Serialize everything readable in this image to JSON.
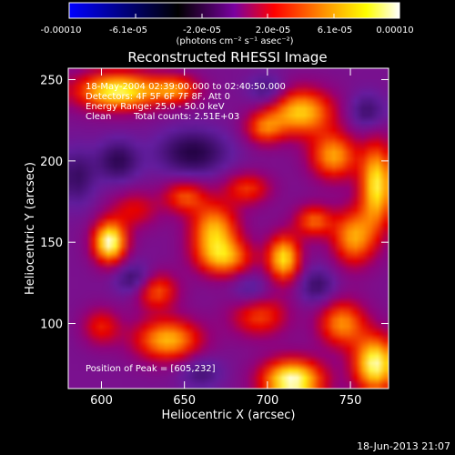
{
  "chart_data": {
    "type": "heatmap",
    "title": "Reconstructed RHESSI Image",
    "xlabel": "Heliocentric X (arcsec)",
    "ylabel": "Heliocentric Y (arcsec)",
    "xlim": [
      580,
      773
    ],
    "ylim": [
      60,
      257
    ],
    "x_ticks": [
      600,
      650,
      700,
      750
    ],
    "y_ticks": [
      100,
      150,
      200,
      250
    ],
    "colorbar": {
      "range": [
        -0.0001,
        0.0001
      ],
      "tick_labels": [
        "-0.00010",
        "-6.1e-05",
        "-2.0e-05",
        "2.0e-05",
        "6.1e-05",
        "0.00010"
      ],
      "label": "(photons cm⁻² s⁻¹ asec⁻²)",
      "palette": [
        "#0000ff",
        "#000000",
        "#7a00a0",
        "#ff0000",
        "#ff9900",
        "#ffff00",
        "#ffffff"
      ]
    },
    "annotations": [
      "18-May-2004 02:39:00.000 to 02:40:50.000",
      "Detectors: 4F 5F 6F 7F 8F, Att 0",
      "Energy Range: 25.0 - 50.0 keV",
      "Clean",
      "Total counts: 2.51E+03"
    ],
    "peak_label": "Position of Peak = [605,232]",
    "footer": "18-Jun-2013 21:07",
    "blobs": [
      {
        "x": 605,
        "y": 150,
        "sx": 7,
        "sy": 9,
        "a": 1.05
      },
      {
        "x": 610,
        "y": 243,
        "sx": 18,
        "sy": 8,
        "a": 0.95
      },
      {
        "x": 645,
        "y": 244,
        "sx": 10,
        "sy": 6,
        "a": 0.55
      },
      {
        "x": 620,
        "y": 170,
        "sx": 10,
        "sy": 8,
        "a": 0.35
      },
      {
        "x": 668,
        "y": 157,
        "sx": 10,
        "sy": 12,
        "a": 0.75
      },
      {
        "x": 650,
        "y": 178,
        "sx": 9,
        "sy": 7,
        "a": 0.5
      },
      {
        "x": 675,
        "y": 140,
        "sx": 12,
        "sy": 8,
        "a": 0.6
      },
      {
        "x": 688,
        "y": 183,
        "sx": 10,
        "sy": 7,
        "a": 0.45
      },
      {
        "x": 720,
        "y": 230,
        "sx": 14,
        "sy": 10,
        "a": 0.8
      },
      {
        "x": 698,
        "y": 220,
        "sx": 8,
        "sy": 7,
        "a": 0.5
      },
      {
        "x": 740,
        "y": 203,
        "sx": 10,
        "sy": 10,
        "a": 0.7
      },
      {
        "x": 766,
        "y": 185,
        "sx": 7,
        "sy": 18,
        "a": 0.9
      },
      {
        "x": 710,
        "y": 140,
        "sx": 7,
        "sy": 10,
        "a": 0.85
      },
      {
        "x": 752,
        "y": 153,
        "sx": 9,
        "sy": 12,
        "a": 0.7
      },
      {
        "x": 728,
        "y": 163,
        "sx": 8,
        "sy": 7,
        "a": 0.55
      },
      {
        "x": 633,
        "y": 120,
        "sx": 9,
        "sy": 8,
        "a": 0.55
      },
      {
        "x": 640,
        "y": 90,
        "sx": 14,
        "sy": 9,
        "a": 0.75
      },
      {
        "x": 695,
        "y": 105,
        "sx": 12,
        "sy": 9,
        "a": 0.5
      },
      {
        "x": 715,
        "y": 65,
        "sx": 13,
        "sy": 9,
        "a": 1.05
      },
      {
        "x": 745,
        "y": 100,
        "sx": 10,
        "sy": 10,
        "a": 0.65
      },
      {
        "x": 765,
        "y": 75,
        "sx": 9,
        "sy": 12,
        "a": 1.0
      },
      {
        "x": 600,
        "y": 98,
        "sx": 8,
        "sy": 8,
        "a": 0.4
      },
      {
        "x": 610,
        "y": 200,
        "sx": 9,
        "sy": 9,
        "a": -0.35
      },
      {
        "x": 655,
        "y": 205,
        "sx": 15,
        "sy": 10,
        "a": -0.4
      },
      {
        "x": 585,
        "y": 190,
        "sx": 8,
        "sy": 12,
        "a": -0.3
      },
      {
        "x": 620,
        "y": 127,
        "sx": 8,
        "sy": 7,
        "a": -0.35
      },
      {
        "x": 690,
        "y": 120,
        "sx": 8,
        "sy": 8,
        "a": -0.25
      },
      {
        "x": 730,
        "y": 123,
        "sx": 8,
        "sy": 8,
        "a": -0.3
      },
      {
        "x": 760,
        "y": 230,
        "sx": 8,
        "sy": 8,
        "a": -0.3
      },
      {
        "x": 700,
        "y": 243,
        "sx": 8,
        "sy": 7,
        "a": -0.3
      },
      {
        "x": 660,
        "y": 70,
        "sx": 9,
        "sy": 7,
        "a": -0.25
      }
    ]
  }
}
